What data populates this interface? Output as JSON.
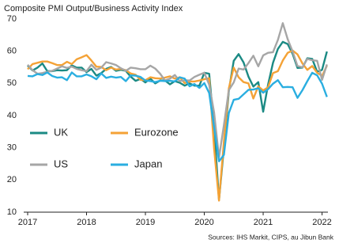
{
  "chart_data": {
    "type": "line",
    "title": "Composite PMI Output/Business Activity Index",
    "source": "Sources: IHS Markit, CIPS, au Jibun Bank",
    "x": [
      2017,
      2017.083,
      2017.167,
      2017.25,
      2017.333,
      2017.417,
      2017.5,
      2017.583,
      2017.667,
      2017.75,
      2017.833,
      2017.917,
      2018,
      2018.083,
      2018.167,
      2018.25,
      2018.333,
      2018.417,
      2018.5,
      2018.583,
      2018.667,
      2018.75,
      2018.833,
      2018.917,
      2019,
      2019.083,
      2019.167,
      2019.25,
      2019.333,
      2019.417,
      2019.5,
      2019.583,
      2019.667,
      2019.75,
      2019.833,
      2019.917,
      2020,
      2020.083,
      2020.167,
      2020.25,
      2020.333,
      2020.417,
      2020.5,
      2020.583,
      2020.667,
      2020.75,
      2020.833,
      2020.917,
      2021,
      2021.083,
      2021.167,
      2021.25,
      2021.333,
      2021.417,
      2021.5,
      2021.583,
      2021.667,
      2021.75,
      2021.833,
      2021.917,
      2022,
      2022.083
    ],
    "series": [
      {
        "name": "UK",
        "color": "#1b8a84",
        "values": [
          55.5,
          54,
          54.9,
          56.2,
          53.8,
          53.8,
          54.1,
          54,
          54.1,
          55.6,
          54.9,
          54.9,
          53.5,
          54.5,
          52.4,
          53.2,
          54.5,
          55.1,
          53.9,
          54.2,
          53.9,
          52.1,
          50.8,
          51.4,
          50.3,
          51.5,
          50,
          50.9,
          50.9,
          49.7,
          50.7,
          50.2,
          49.3,
          50,
          49.3,
          49.3,
          53.3,
          53,
          36,
          13.8,
          30,
          47.7,
          57,
          59.1,
          56.5,
          52.1,
          49,
          50.4,
          41.2,
          49.6,
          56.4,
          60.7,
          62.9,
          62.2,
          59.2,
          54.8,
          54.9,
          57.8,
          57.6,
          53.6,
          54.2,
          59.9
        ]
      },
      {
        "name": "Eurozone",
        "color": "#f4a236",
        "values": [
          54.4,
          56,
          56.4,
          56.8,
          56.8,
          56.3,
          55.7,
          55.7,
          56.7,
          56,
          57.5,
          58.1,
          58.8,
          57.1,
          55.2,
          55.1,
          54.1,
          54.9,
          54.3,
          54.5,
          54.1,
          53.1,
          52.7,
          51.1,
          51,
          51.9,
          51.6,
          51.5,
          51.8,
          52.2,
          51.5,
          51.9,
          50.1,
          50.6,
          50.6,
          50.9,
          51.3,
          51.6,
          29.7,
          13.6,
          31.9,
          48.5,
          54.9,
          51.9,
          50.4,
          50,
          45.3,
          49.1,
          47.8,
          48.8,
          53.2,
          53.8,
          57.1,
          59.5,
          60.2,
          59,
          56.2,
          54.2,
          55.4,
          53.3,
          52.3,
          55.5
        ]
      },
      {
        "name": "US",
        "color": "#a6a6a6",
        "values": [
          55.8,
          54.1,
          53,
          53.2,
          53.6,
          53.9,
          54.6,
          55.3,
          54.8,
          55.2,
          54.5,
          54.1,
          53.8,
          55.8,
          54.2,
          54.9,
          56.6,
          56.2,
          55.7,
          54.7,
          53.9,
          54.9,
          54.7,
          54.4,
          54.4,
          55.5,
          54.6,
          53,
          50.9,
          51.5,
          52.6,
          50.7,
          51,
          50.9,
          52,
          52.7,
          53.3,
          49.6,
          40.9,
          27,
          37,
          47.9,
          50.3,
          54.6,
          54.3,
          56.3,
          58.6,
          55.3,
          58.7,
          59.5,
          59.7,
          63.5,
          68.7,
          63.7,
          59.9,
          55.4,
          55,
          57.6,
          57.2,
          57,
          51.1,
          55.9
        ]
      },
      {
        "name": "Japan",
        "color": "#2aaee0",
        "values": [
          52.3,
          52.2,
          52.9,
          52.6,
          53.4,
          52.3,
          51.8,
          51.9,
          51,
          53.4,
          52.2,
          52.2,
          52.8,
          52.2,
          51.3,
          53.1,
          51.7,
          52.1,
          51.8,
          52,
          50.7,
          52.5,
          52.4,
          52,
          50.9,
          50.7,
          50.4,
          50.8,
          50.7,
          50.8,
          50.6,
          51.9,
          51.5,
          49.1,
          49.8,
          48.6,
          50.1,
          47,
          36.2,
          25.8,
          27.8,
          40.8,
          44.9,
          45.2,
          46.6,
          48,
          48.1,
          48.5,
          47.1,
          48.2,
          49.9,
          51,
          48.8,
          48.9,
          48.8,
          45.5,
          47.9,
          50.7,
          53.3,
          52.5,
          49.9,
          45.8
        ]
      }
    ],
    "xlim": [
      2017,
      2022.1
    ],
    "xticks": [
      2017,
      2018,
      2019,
      2020,
      2021,
      2022
    ],
    "ylim": [
      10,
      70
    ],
    "yticks": [
      10,
      20,
      30,
      40,
      50,
      60,
      70
    ]
  }
}
